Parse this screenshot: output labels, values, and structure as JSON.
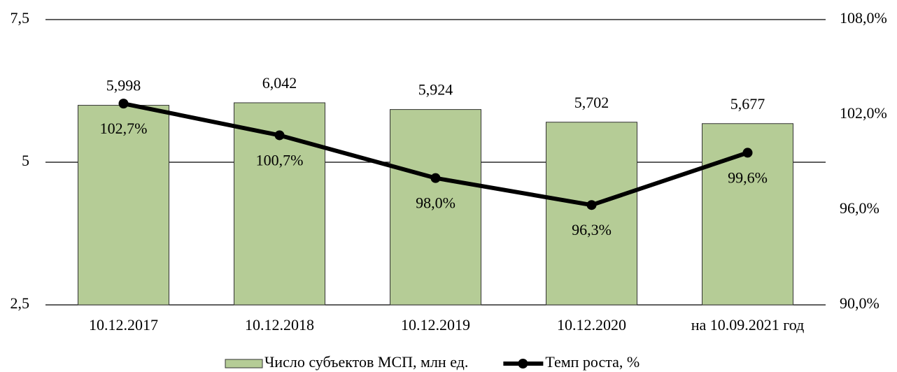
{
  "chart_data": {
    "type": "bar",
    "categories": [
      "10.12.2017",
      "10.12.2018",
      "10.12.2019",
      "10.12.2020",
      "на 10.09.2021 год"
    ],
    "series": [
      {
        "name": "Число субъектов МСП, млн ед.",
        "color": "#b5cc96",
        "values": [
          5.998,
          6.042,
          5.924,
          5.702,
          5.677
        ],
        "value_labels": [
          "5,998",
          "6,042",
          "5,924",
          "5,702",
          "5,677"
        ]
      },
      {
        "name": "Темп роста, %",
        "color": "#000000",
        "type": "line",
        "axis": "y2",
        "values": [
          102.7,
          100.7,
          98.0,
          96.3,
          99.6
        ],
        "value_labels": [
          "102,7%",
          "100,7%",
          "98,0%",
          "96,3%",
          "99,6%"
        ]
      }
    ],
    "ylim": [
      2.5,
      7.5
    ],
    "yticks": [
      {
        "value": 2.5,
        "label": "2,5"
      },
      5,
      {
        "value": 7.5,
        "label": "7,5"
      }
    ],
    "y2lim": [
      90,
      108
    ],
    "y2ticks": [
      {
        "value": 90,
        "label": "90,0%"
      },
      {
        "value": 96,
        "label": "96,0%"
      },
      {
        "value": 102,
        "label": "102,0%"
      },
      {
        "value": 108,
        "label": "108,0%"
      }
    ],
    "grid": true,
    "legend": "bottom"
  }
}
